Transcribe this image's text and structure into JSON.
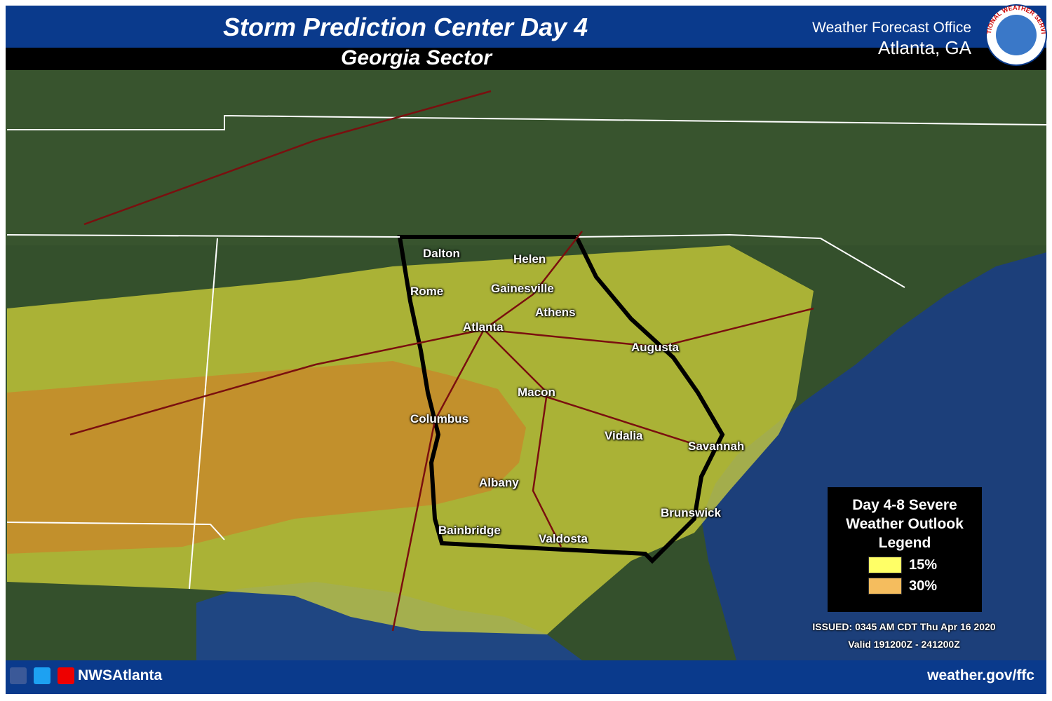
{
  "header": {
    "title": "Storm Prediction Center Day 4",
    "subtitle": "Georgia Sector",
    "office": "Weather Forecast Office",
    "office_location": "Atlanta, GA",
    "logo_text": "NATIONAL WEATHER SERVICE"
  },
  "map": {
    "cities": [
      "Dalton",
      "Helen",
      "Rome",
      "Gainesville",
      "Athens",
      "Atlanta",
      "Augusta",
      "Macon",
      "Columbus",
      "Vidalia",
      "Savannah",
      "Albany",
      "Brunswick",
      "Bainbridge",
      "Valdosta"
    ]
  },
  "legend": {
    "title": "Day 4-8 Severe Weather Outlook Legend",
    "items": [
      {
        "label": "15%",
        "color": "#ffff66"
      },
      {
        "label": "30%",
        "color": "#f5bd5e"
      }
    ]
  },
  "issued": "ISSUED: 0345 AM CDT Thu Apr 16 2020",
  "valid": "Valid 191200Z - 241200Z",
  "footer": {
    "handle": "NWSAtlanta",
    "url": "weather.gov/ffc"
  }
}
